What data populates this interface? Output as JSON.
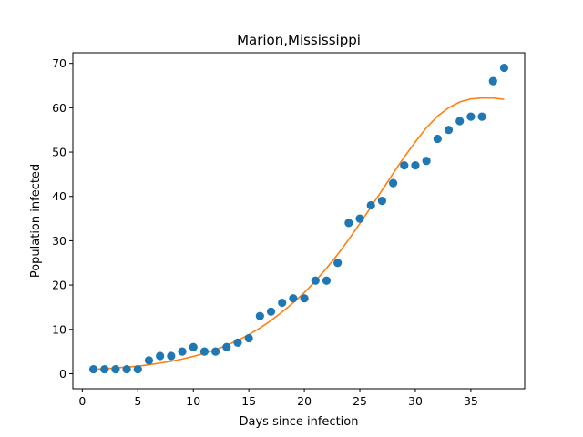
{
  "chart_data": {
    "type": "scatter",
    "title": "Marion,Mississippi",
    "xlabel": "Days since infection",
    "ylabel": "Population infected",
    "xlim": [
      -0.85,
      39.85
    ],
    "ylim": [
      -3.4,
      72.4
    ],
    "xticks": [
      0,
      5,
      10,
      15,
      20,
      25,
      30,
      35
    ],
    "yticks": [
      0,
      10,
      20,
      30,
      40,
      50,
      60,
      70
    ],
    "grid": false,
    "series": [
      {
        "kind": "scatter",
        "color": "#1f77b4",
        "x": [
          1,
          2,
          3,
          4,
          5,
          6,
          7,
          8,
          9,
          10,
          11,
          12,
          13,
          14,
          15,
          16,
          17,
          18,
          19,
          20,
          21,
          22,
          23,
          24,
          25,
          26,
          27,
          28,
          29,
          30,
          31,
          32,
          33,
          34,
          35,
          36,
          37,
          38
        ],
        "y": [
          1,
          1,
          1,
          1,
          1,
          3,
          4,
          4,
          5,
          6,
          5,
          5,
          6,
          7,
          8,
          13,
          14,
          16,
          17,
          17,
          21,
          21,
          25,
          34,
          35,
          38,
          39,
          43,
          47,
          47,
          48,
          53,
          55,
          57,
          58,
          58,
          66,
          69
        ]
      },
      {
        "kind": "line",
        "color": "#ff7f0e",
        "x": [
          1,
          2,
          3,
          4,
          5,
          6,
          7,
          8,
          9,
          10,
          11,
          12,
          13,
          14,
          15,
          16,
          17,
          18,
          19,
          20,
          21,
          22,
          23,
          24,
          25,
          26,
          27,
          28,
          29,
          30,
          31,
          32,
          33,
          34,
          35,
          36,
          37,
          38
        ],
        "y": [
          1.0,
          1.1,
          1.3,
          1.5,
          1.7,
          2.0,
          2.4,
          2.8,
          3.3,
          3.9,
          4.6,
          5.4,
          6.4,
          7.5,
          8.8,
          10.3,
          12.0,
          13.9,
          16.0,
          18.3,
          20.9,
          23.8,
          26.9,
          30.3,
          33.9,
          37.6,
          41.4,
          45.2,
          48.9,
          52.3,
          55.5,
          58.1,
          60.0,
          61.3,
          62.0,
          62.2,
          62.2,
          61.9
        ]
      }
    ]
  }
}
